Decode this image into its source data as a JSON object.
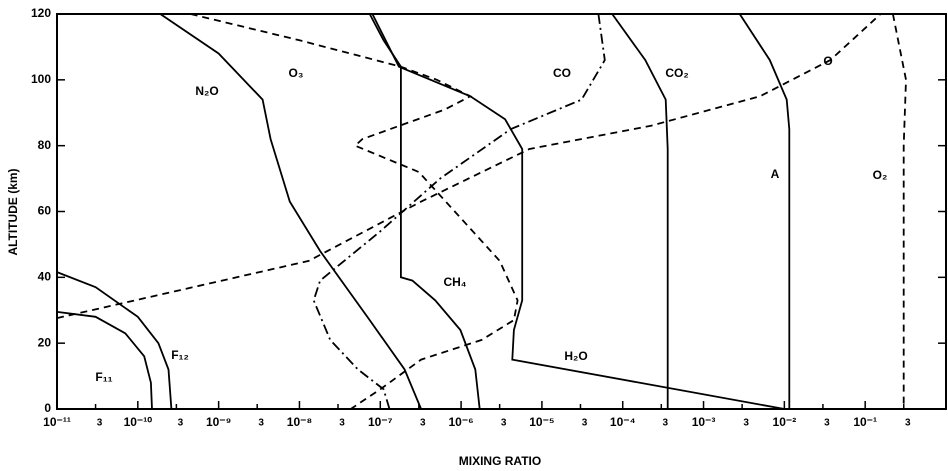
{
  "chart_data": {
    "type": "line",
    "x_label": "MIXING RATIO",
    "y_label": "ALTITUDE (km)",
    "log_x": true,
    "xlim": [
      1e-11,
      1
    ],
    "ylim": [
      0,
      120
    ],
    "xticks": [
      {
        "value": 1e-11,
        "label": "10⁻¹¹"
      },
      {
        "value": 3e-11,
        "label": "3"
      },
      {
        "value": 1e-10,
        "label": "10⁻¹⁰"
      },
      {
        "value": 3e-10,
        "label": "3"
      },
      {
        "value": 1e-09,
        "label": "10⁻⁹"
      },
      {
        "value": 3e-09,
        "label": "3"
      },
      {
        "value": 1e-08,
        "label": "10⁻⁸"
      },
      {
        "value": 3e-08,
        "label": "3"
      },
      {
        "value": 1e-07,
        "label": "10⁻⁷"
      },
      {
        "value": 3e-07,
        "label": "3"
      },
      {
        "value": 1e-06,
        "label": "10⁻⁶"
      },
      {
        "value": 3e-06,
        "label": "3"
      },
      {
        "value": 1e-05,
        "label": "10⁻⁵"
      },
      {
        "value": 3e-05,
        "label": "3"
      },
      {
        "value": 0.0001,
        "label": "10⁻⁴"
      },
      {
        "value": 0.0003,
        "label": "3"
      },
      {
        "value": 0.001,
        "label": "10⁻³"
      },
      {
        "value": 0.003,
        "label": "3"
      },
      {
        "value": 0.01,
        "label": "10⁻²"
      },
      {
        "value": 0.03,
        "label": "3"
      },
      {
        "value": 0.1,
        "label": "10⁻¹"
      },
      {
        "value": 0.3,
        "label": "3"
      }
    ],
    "yticks": [
      0,
      20,
      40,
      60,
      80,
      100,
      120
    ],
    "series": [
      {
        "name": "F₁₁",
        "color": "#000",
        "dash": "solid",
        "x": [
          1e-11,
          3e-11,
          7e-11,
          1.2e-10,
          1.45e-10,
          1.5e-10
        ],
        "values": [
          29.5,
          28,
          23,
          16,
          8,
          0
        ]
      },
      {
        "name": "F₁₂",
        "color": "#000",
        "dash": "solid",
        "x": [
          1e-11,
          3e-11,
          1e-10,
          1.8e-10,
          2.4e-10,
          2.6e-10
        ],
        "values": [
          41.6,
          37,
          28,
          20,
          12,
          0
        ]
      },
      {
        "name": "N₂O",
        "color": "#000",
        "dash": "solid",
        "x": [
          1.9e-10,
          1e-09,
          3.5e-09,
          4.4e-09,
          7.6e-09,
          1.8e-08,
          7.4e-08,
          2e-07,
          3.2e-07
        ],
        "values": [
          120,
          108,
          94,
          82,
          63,
          48,
          27,
          12,
          0
        ]
      },
      {
        "name": "O₃",
        "color": "#000",
        "dash": "dashed",
        "x": [
          4.5e-10,
          1e-08,
          1.8e-07,
          5e-07,
          1.3e-06,
          6.3e-07,
          6e-08,
          4.9e-08,
          3e-07,
          3e-06,
          5e-06,
          4.5e-06,
          1.8e-06,
          3.2e-07,
          1e-07,
          4.3e-08
        ],
        "values": [
          120,
          112,
          104,
          100,
          95,
          91,
          82,
          80,
          72,
          45,
          33,
          27,
          21,
          15,
          6,
          0
        ]
      },
      {
        "name": "CH₄",
        "color": "#000",
        "dash": "solid",
        "x": [
          7.4e-08,
          1.1e-07,
          1.8e-07,
          1.8e-07,
          2.5e-07,
          4.8e-07,
          9.8e-07,
          1.5e-06,
          1.7e-06
        ],
        "values": [
          120,
          112,
          104,
          40,
          39,
          33,
          24,
          12,
          0
        ]
      },
      {
        "name": "CO",
        "color": "#000",
        "dash": "dashdot",
        "x": [
          5e-05,
          6e-05,
          3.1e-05,
          4.1e-06,
          5.5e-07,
          1e-07,
          1.8e-08,
          1.5e-08,
          2.4e-08,
          5.3e-08,
          1.1e-07,
          1.3e-07
        ],
        "values": [
          120,
          106,
          94,
          85,
          70,
          54,
          39,
          33,
          21,
          12,
          6,
          0
        ]
      },
      {
        "name": "CO₂",
        "color": "#000",
        "dash": "solid",
        "x": [
          7.4e-05,
          0.00019,
          0.00034,
          0.00036,
          0.00036
        ],
        "values": [
          120,
          106,
          94,
          79,
          0
        ]
      },
      {
        "name": "H₂O",
        "color": "#000",
        "dash": "solid",
        "x": [
          8e-08,
          1.7e-07,
          1.3e-06,
          3.5e-06,
          5.7e-06,
          5.7e-06,
          4.5e-06,
          4.3e-06,
          0.01
        ],
        "values": [
          120,
          104,
          95,
          88,
          79,
          33,
          24,
          15,
          0
        ]
      },
      {
        "name": "A",
        "color": "#000",
        "dash": "solid",
        "x": [
          0.0028,
          0.0066,
          0.0107,
          0.0115,
          0.0115
        ],
        "values": [
          120,
          106,
          94,
          85,
          0
        ]
      },
      {
        "name": "O",
        "color": "#000",
        "dash": "dashed",
        "x": [
          1e-11,
          1.3e-08,
          3.2e-07,
          7e-06,
          0.00022,
          0.005,
          0.037,
          0.155
        ],
        "values": [
          27.6,
          45,
          63,
          79,
          86,
          95,
          106,
          120
        ]
      },
      {
        "name": "O₂",
        "color": "#000",
        "dash": "dashed",
        "x": [
          0.22,
          0.32,
          0.3,
          0.3
        ],
        "values": [
          120,
          100,
          80,
          0
        ]
      }
    ]
  }
}
